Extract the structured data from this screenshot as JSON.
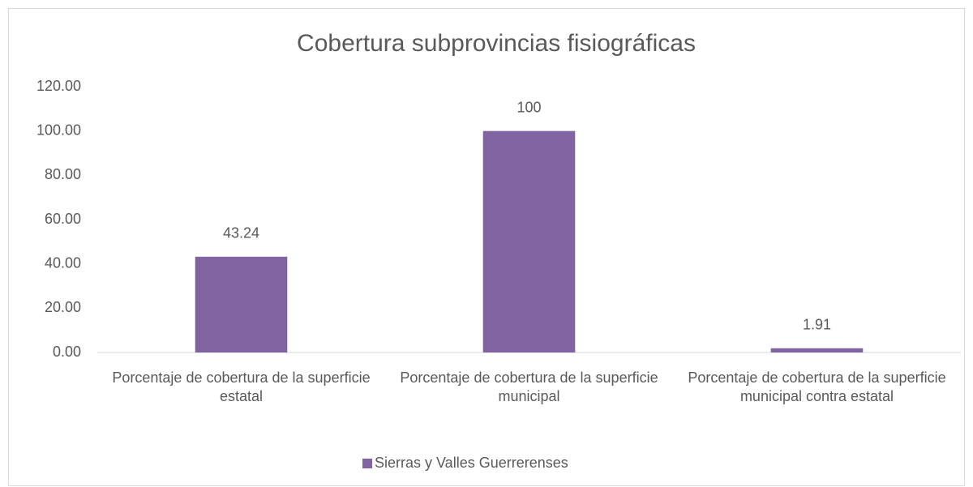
{
  "chart_data": {
    "type": "bar",
    "title": "Cobertura subprovincias fisiográficas",
    "categories": [
      "Porcentaje de cobertura de la superficie estatal",
      "Porcentaje de cobertura de la superficie municipal",
      "Porcentaje de cobertura de la superficie municipal contra estatal"
    ],
    "series": [
      {
        "name": "Sierras y Valles Guerrerenses",
        "color": "#8064a2",
        "values": [
          43.24,
          100,
          1.91
        ]
      }
    ],
    "ylim": [
      0,
      120
    ],
    "yticks": [
      {
        "value": 0,
        "label": "0.00"
      },
      {
        "value": 20,
        "label": "20.00"
      },
      {
        "value": 40,
        "label": "40.00"
      },
      {
        "value": 60,
        "label": "60.00"
      },
      {
        "value": 80,
        "label": "80.00"
      },
      {
        "value": 100,
        "label": "100.00"
      },
      {
        "value": 120,
        "label": "120.00"
      }
    ],
    "grid": false,
    "legend": "bottom",
    "data_labels": true
  }
}
